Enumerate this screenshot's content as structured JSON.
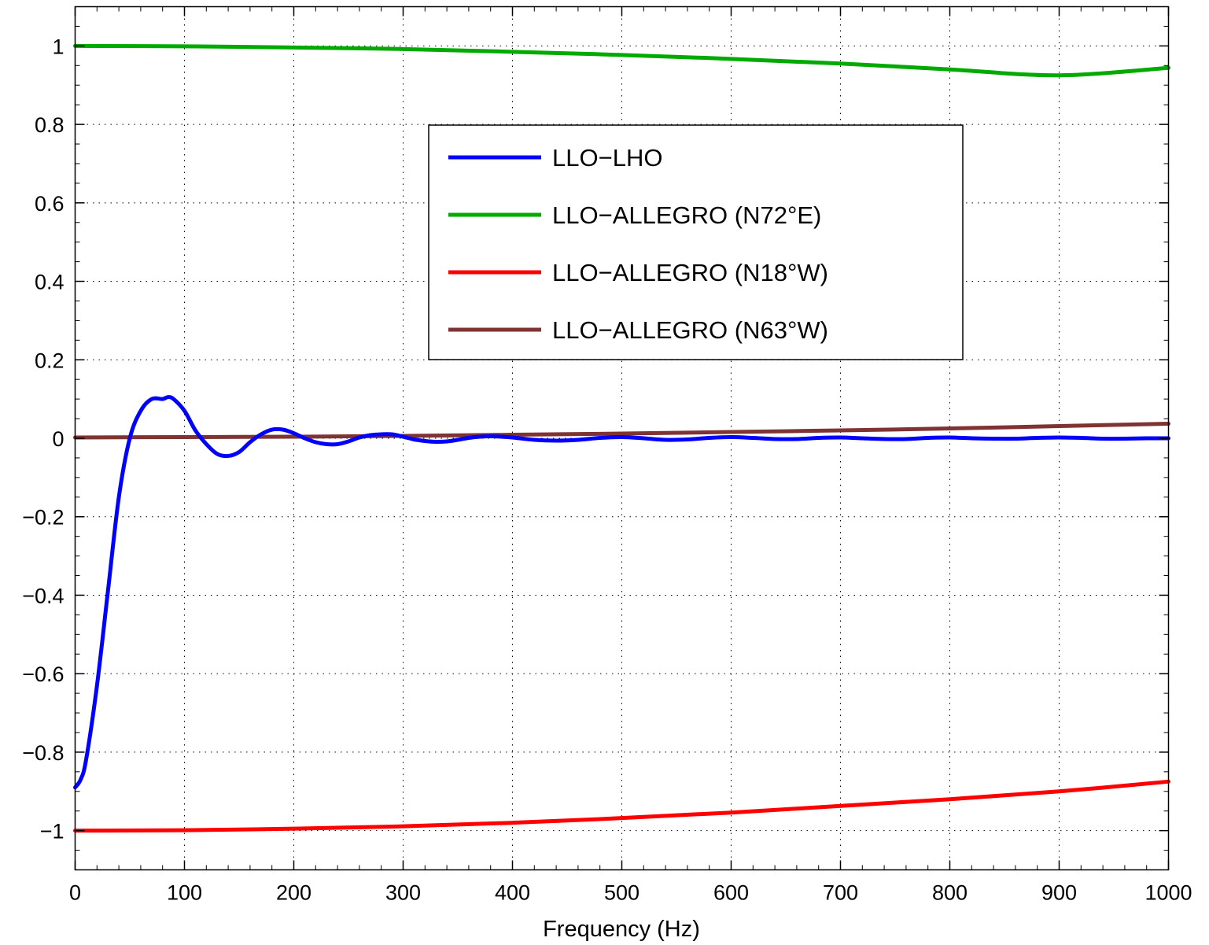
{
  "chart_data": {
    "type": "line",
    "title": "",
    "xlabel": "Frequency (Hz)",
    "ylabel": "",
    "xlim": [
      0,
      1000
    ],
    "ylim": [
      -1.1,
      1.1
    ],
    "grid": true,
    "legend_position": "top-center",
    "x_ticks": [
      0,
      100,
      200,
      300,
      400,
      500,
      600,
      700,
      800,
      900,
      1000
    ],
    "x_tick_labels": [
      "0",
      "100",
      "200",
      "300",
      "400",
      "500",
      "600",
      "700",
      "800",
      "900",
      "1000"
    ],
    "y_ticks": [
      1,
      0.8,
      0.6,
      0.4,
      0.2,
      0,
      -0.2,
      -0.4,
      -0.6,
      -0.8,
      -1
    ],
    "y_tick_labels": [
      "1",
      "0.8",
      "0.6",
      "0.4",
      "0.2",
      "0",
      "−0.2",
      "−0.4",
      "−0.6",
      "−0.8",
      "−1"
    ],
    "series": [
      {
        "name": "LLO−LHO",
        "color": "#0000ff",
        "x": [
          0,
          5,
          10,
          20,
          30,
          40,
          50,
          60,
          70,
          80,
          85,
          90,
          100,
          110,
          120,
          130,
          140,
          150,
          160,
          170,
          180,
          190,
          200,
          210,
          220,
          230,
          240,
          250,
          260,
          270,
          280,
          290,
          300,
          310,
          320,
          330,
          340,
          350,
          360,
          370,
          380,
          390,
          400,
          420,
          440,
          460,
          480,
          500,
          520,
          540,
          560,
          580,
          600,
          620,
          640,
          660,
          680,
          700,
          720,
          740,
          760,
          780,
          800,
          820,
          840,
          860,
          880,
          900,
          920,
          940,
          960,
          980,
          1000
        ],
        "y": [
          -0.89,
          -0.87,
          -0.82,
          -0.63,
          -0.39,
          -0.15,
          0.0,
          0.07,
          0.1,
          0.1,
          0.105,
          0.1,
          0.07,
          0.02,
          -0.015,
          -0.04,
          -0.045,
          -0.035,
          -0.01,
          0.01,
          0.022,
          0.022,
          0.013,
          0.0,
          -0.01,
          -0.015,
          -0.015,
          -0.008,
          0.002,
          0.008,
          0.01,
          0.01,
          0.004,
          -0.003,
          -0.007,
          -0.009,
          -0.008,
          -0.004,
          0.001,
          0.004,
          0.005,
          0.004,
          0.002,
          -0.004,
          -0.006,
          -0.004,
          0.001,
          0.003,
          0.0,
          -0.004,
          -0.003,
          0.001,
          0.003,
          0.001,
          -0.002,
          -0.002,
          0.001,
          0.002,
          0.0,
          -0.002,
          -0.002,
          0.001,
          0.002,
          0.0,
          -0.001,
          -0.001,
          0.001,
          0.002,
          0.001,
          -0.001,
          -0.001,
          0.0,
          0.0
        ]
      },
      {
        "name": "LLO−ALLEGRO (N72°E)",
        "color": "#00aa00",
        "x": [
          0,
          100,
          200,
          300,
          400,
          500,
          600,
          700,
          800,
          900,
          1000
        ],
        "y": [
          1.0,
          0.999,
          0.996,
          0.992,
          0.985,
          0.977,
          0.967,
          0.955,
          0.94,
          0.925,
          0.944
        ]
      },
      {
        "name": "LLO−ALLEGRO (N18°W)",
        "color": "#ff0000",
        "x": [
          0,
          100,
          200,
          300,
          400,
          500,
          600,
          700,
          800,
          900,
          1000
        ],
        "y": [
          -1.0,
          -0.999,
          -0.995,
          -0.989,
          -0.98,
          -0.968,
          -0.954,
          -0.937,
          -0.92,
          -0.9,
          -0.875
        ]
      },
      {
        "name": "LLO−ALLEGRO (N63°W)",
        "color": "#7f3333",
        "x": [
          0,
          100,
          200,
          300,
          400,
          500,
          600,
          700,
          800,
          900,
          1000
        ],
        "y": [
          0.002,
          0.003,
          0.004,
          0.006,
          0.009,
          0.012,
          0.016,
          0.02,
          0.025,
          0.031,
          0.037
        ]
      }
    ]
  }
}
